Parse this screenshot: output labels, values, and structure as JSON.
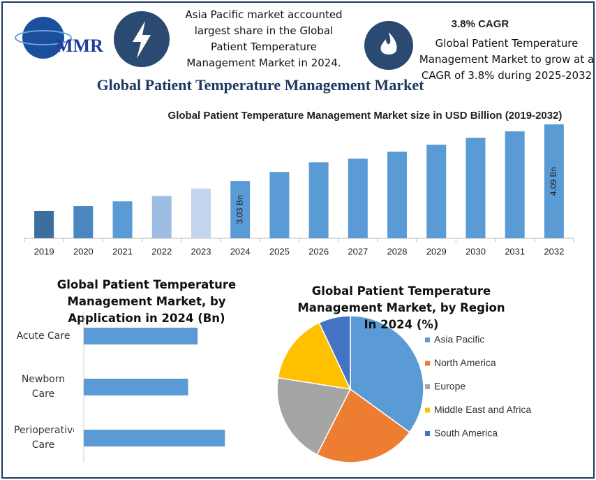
{
  "header": {
    "logo": "MMR",
    "blurb_left": "Asia Pacific market accounted largest share in the Global Patient Temperature Management Market in 2024.",
    "cagr_title": "3.8% CAGR",
    "blurb_right": "Global Patient Temperature Management Market to grow at a CAGR of 3.8% during 2025-2032",
    "title": "Global Patient Temperature Management Market"
  },
  "chart_data": [
    {
      "type": "bar",
      "title": "Global Patient Temperature Management Market size in USD Billion (2019-2032)",
      "categories": [
        "2019",
        "2020",
        "2021",
        "2022",
        "2023",
        "2024",
        "2025",
        "2026",
        "2027",
        "2028",
        "2029",
        "2030",
        "2031",
        "2032"
      ],
      "values": [
        2.47,
        2.56,
        2.65,
        2.75,
        2.89,
        3.03,
        3.2,
        3.38,
        3.45,
        3.58,
        3.71,
        3.84,
        3.96,
        4.09
      ],
      "value_labels": [
        null,
        null,
        null,
        null,
        null,
        "3.03 Bn",
        null,
        null,
        null,
        null,
        null,
        null,
        null,
        "4.09 Bn"
      ],
      "colors": [
        "#3d6f9e",
        "#4a86c0",
        "#5b9bd5",
        "#9dbde3",
        "#c3d5ee",
        "#5b9bd5",
        "#5b9bd5",
        "#5b9bd5",
        "#5b9bd5",
        "#5b9bd5",
        "#5b9bd5",
        "#5b9bd5",
        "#5b9bd5",
        "#5b9bd5"
      ],
      "ylim": [
        1.96,
        4.09
      ]
    },
    {
      "type": "hbar",
      "title": "Global Patient Temperature Management Market, by Application in 2024 (Bn)",
      "categories": [
        "Acute Care",
        "Newborn Care",
        "Perioperative Care"
      ],
      "values": [
        0.96,
        0.88,
        1.19
      ],
      "color": "#5b9bd5",
      "xlim": [
        0,
        1.2
      ]
    },
    {
      "type": "pie",
      "title": "Global Patient Temperature Management Market, by Region In 2024 (%)",
      "categories": [
        "Asia Pacific",
        "North America",
        "Europe",
        "Middle East and Africa",
        "South America"
      ],
      "values": [
        35,
        22.5,
        20,
        15.5,
        7
      ],
      "colors": [
        "#5b9bd5",
        "#ed7d31",
        "#a5a5a5",
        "#ffc000",
        "#4472c4"
      ]
    }
  ]
}
